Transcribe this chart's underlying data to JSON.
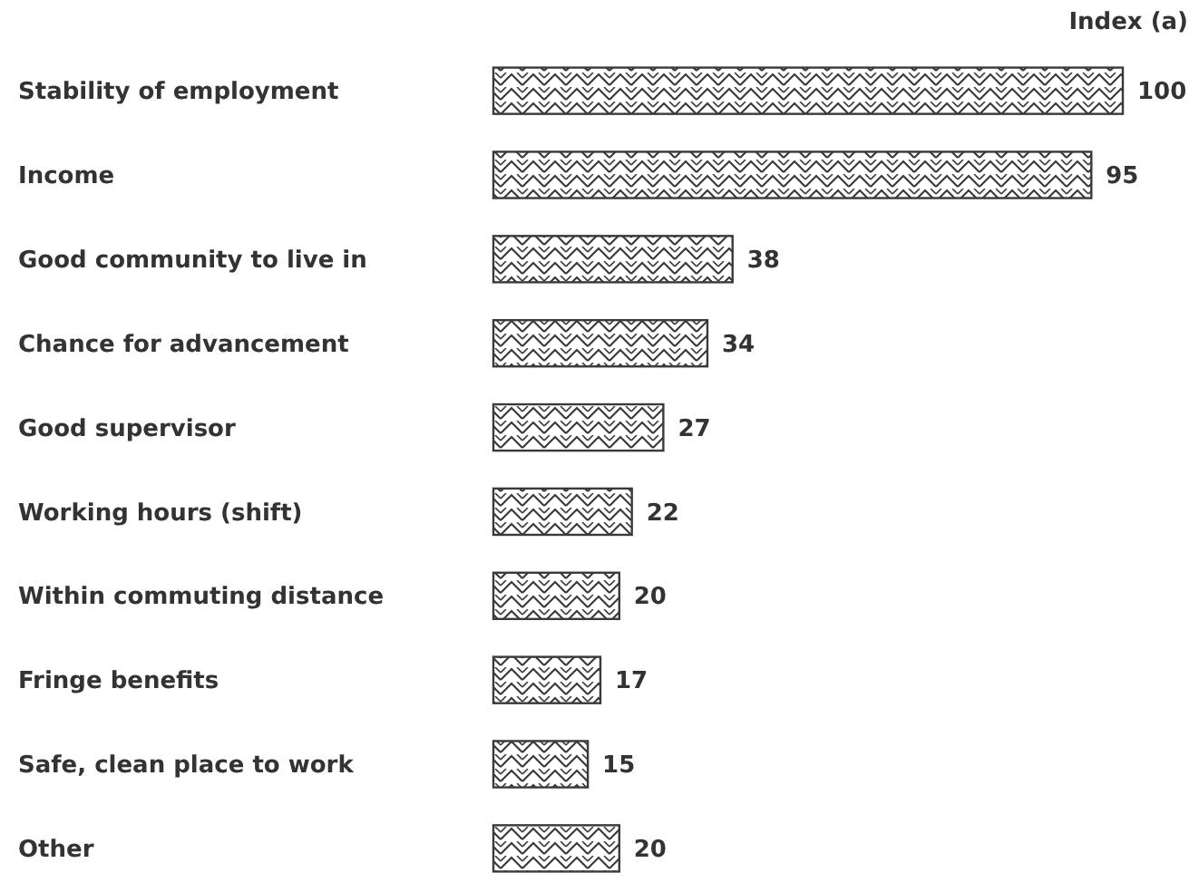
{
  "chart_data": {
    "type": "bar",
    "orientation": "horizontal",
    "xlabel": "Index (a)",
    "categories": [
      "Stability of employment",
      "Income",
      "Good community to live in",
      "Chance for advancement",
      "Good supervisor",
      "Working hours (shift)",
      "Within commuting distance",
      "Fringe benefits",
      "Safe, clean place to work",
      "Other"
    ],
    "values": [
      100,
      95,
      38,
      34,
      27,
      22,
      20,
      17,
      15,
      20
    ],
    "color": "#3a3a3a",
    "xlim": [
      0,
      100
    ],
    "data_labels": true
  }
}
